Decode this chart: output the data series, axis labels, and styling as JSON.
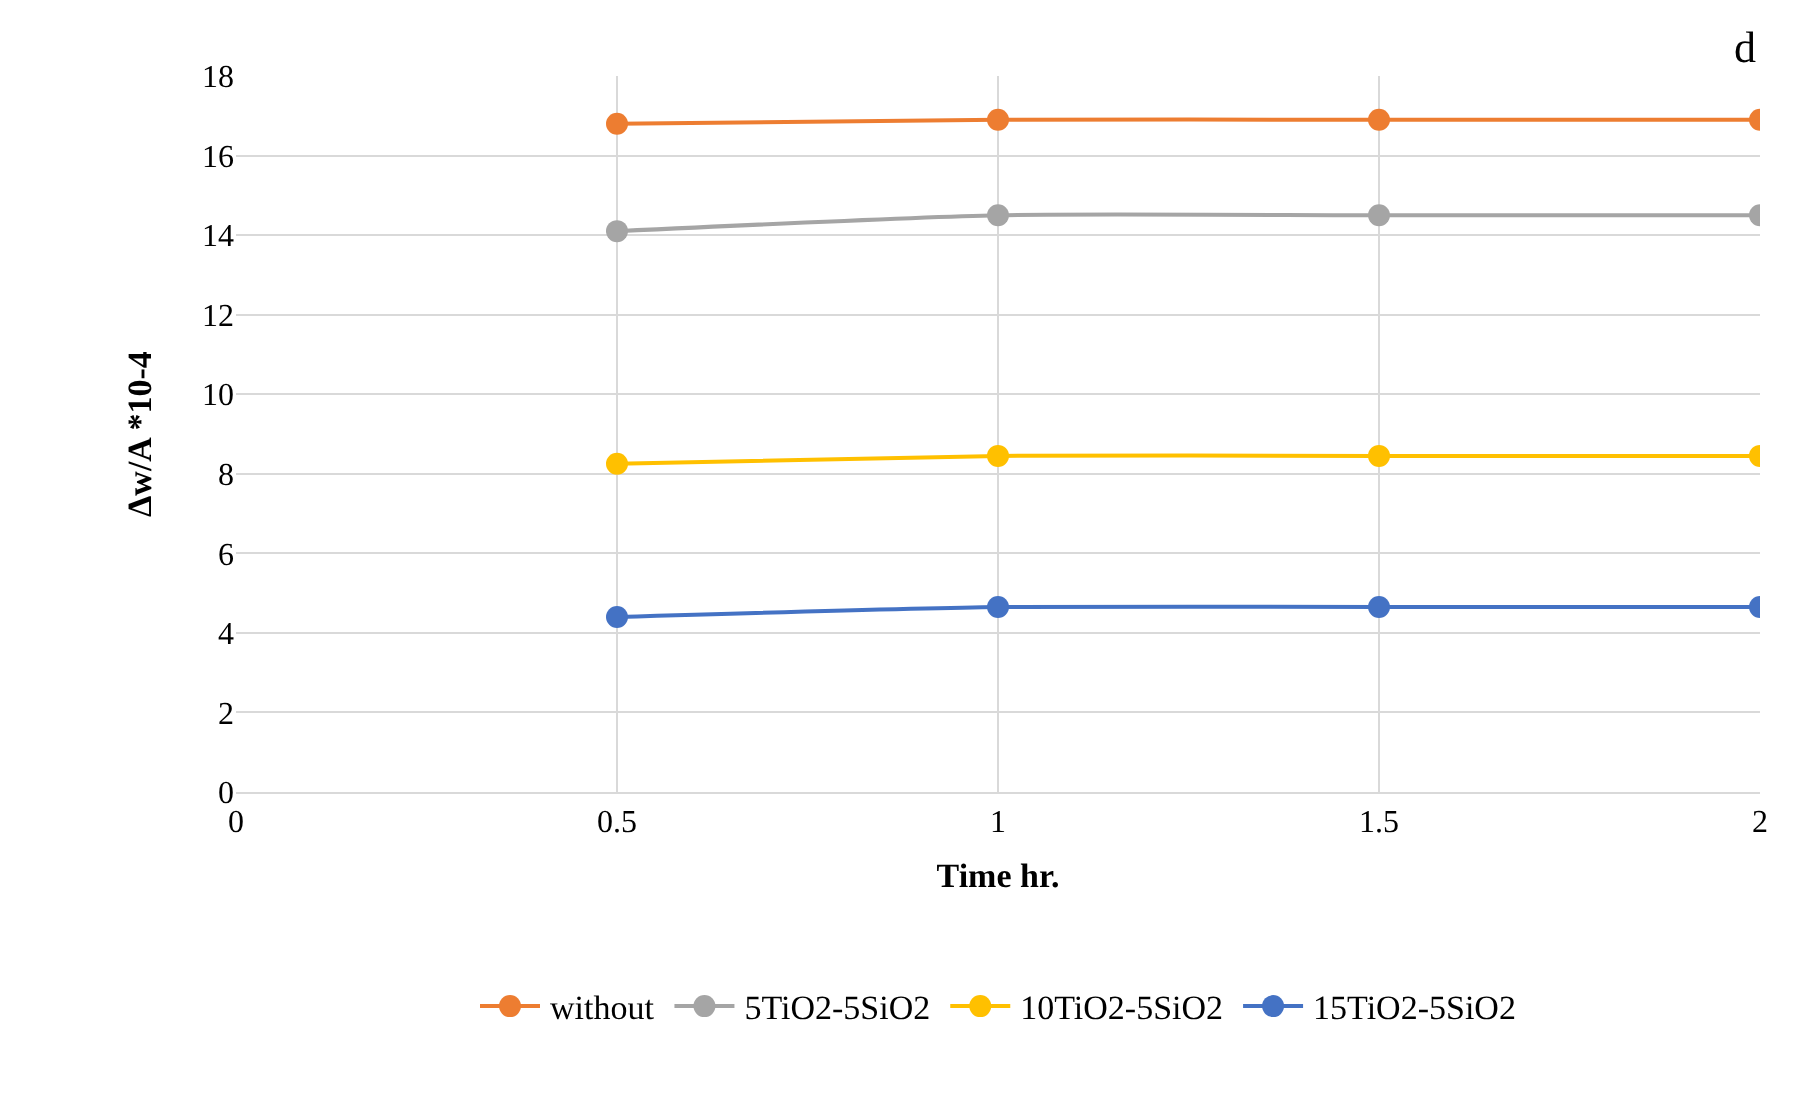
{
  "chart_data": {
    "type": "line",
    "xlabel": "Time hr.",
    "ylabel": "Δw/A *10-4",
    "x": [
      0.5,
      1,
      1.5,
      2
    ],
    "series": [
      {
        "name": "without",
        "color": "#ed7d31",
        "values": [
          16.8,
          16.9,
          16.9,
          16.9
        ]
      },
      {
        "name": "5TiO2-5SiO2",
        "color": "#a5a5a5",
        "values": [
          14.1,
          14.5,
          14.5,
          14.5
        ]
      },
      {
        "name": "10TiO2-5SiO2",
        "color": "#ffc000",
        "values": [
          8.25,
          8.45,
          8.45,
          8.45
        ]
      },
      {
        "name": "15TiO2-5SiO2",
        "color": "#4472c4",
        "values": [
          4.4,
          4.65,
          4.65,
          4.65
        ]
      }
    ],
    "xlim": [
      0,
      2
    ],
    "xticks": [
      0,
      0.5,
      1,
      1.5,
      2
    ],
    "ylim": [
      0,
      18
    ],
    "yticks": [
      0,
      2,
      4,
      6,
      8,
      10,
      12,
      14,
      16,
      18
    ],
    "grid": true,
    "legend": "bottom",
    "marker": "circle",
    "line_style": "solid",
    "annotations": [
      "d"
    ]
  }
}
